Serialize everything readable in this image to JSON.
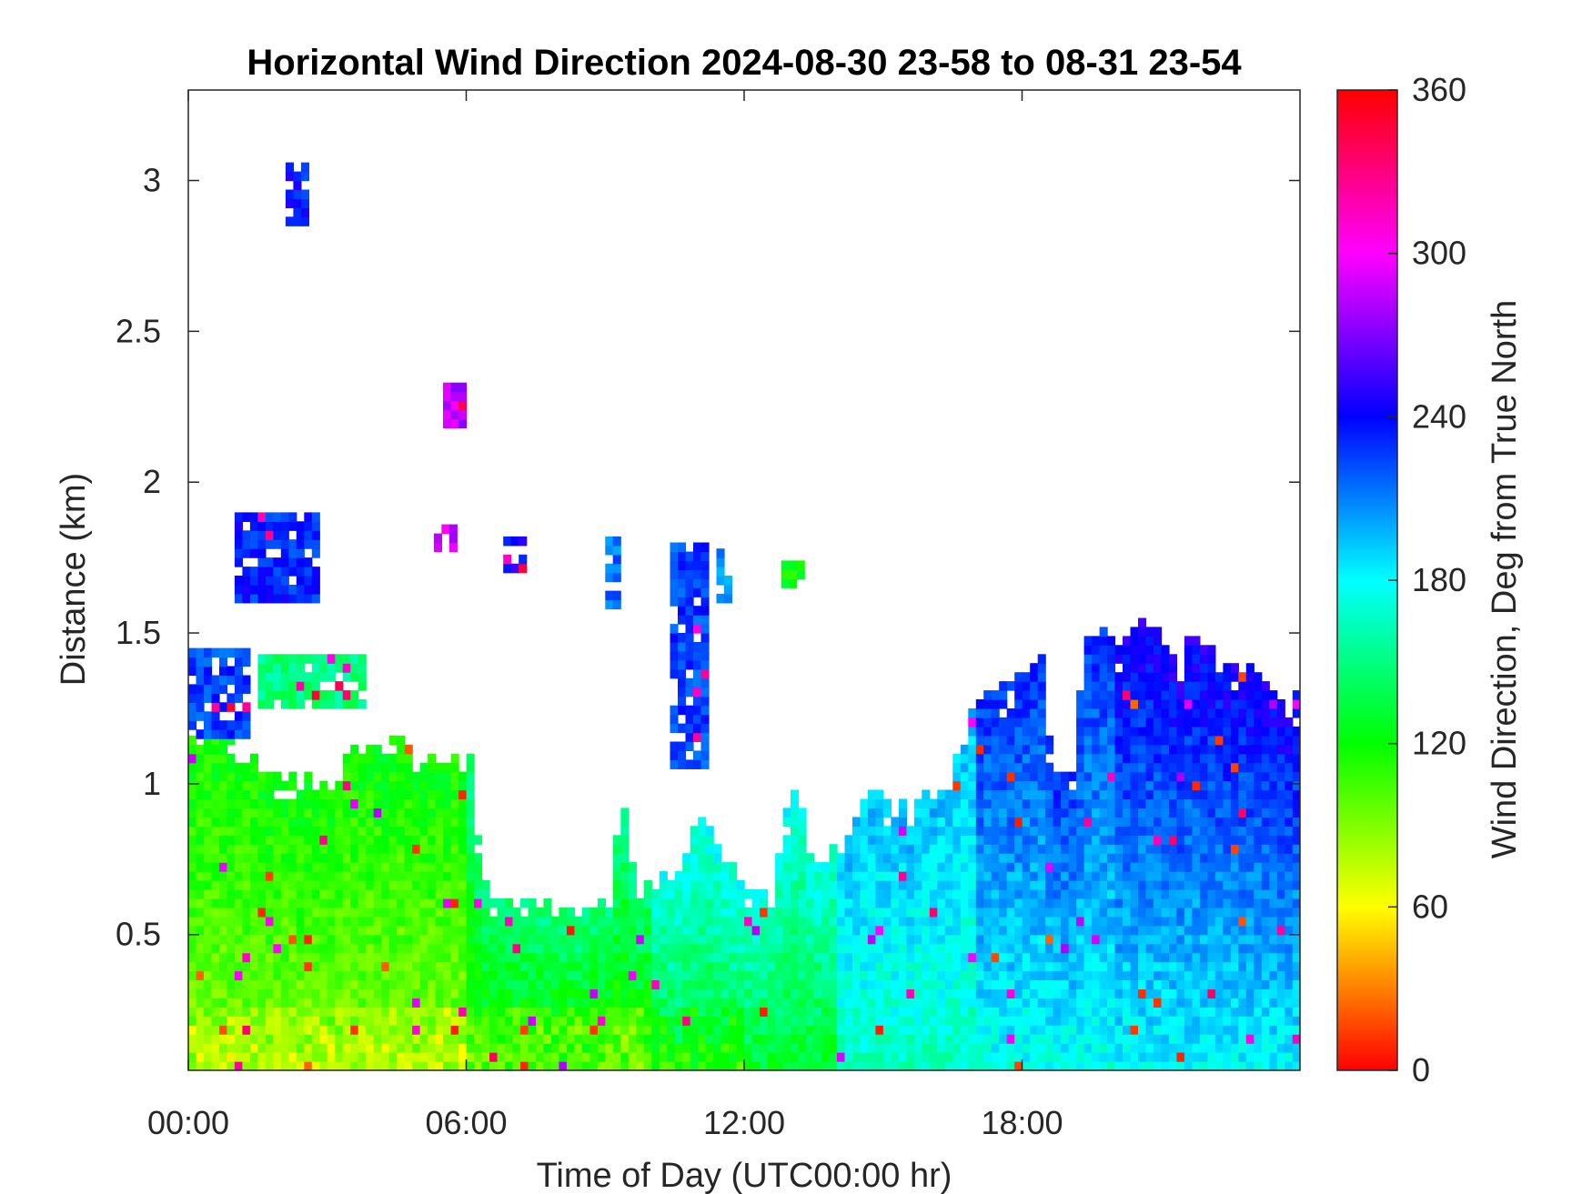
{
  "chart_data": {
    "type": "heatmap",
    "title": "Horizontal Wind Direction 2024-08-30 23-58 to 08-31 23-54",
    "xlabel": "Time of Day (UTC00:00 hr)",
    "ylabel": "Distance (km)",
    "xlim_hours": [
      0,
      24
    ],
    "ylim_km": [
      0.05,
      3.3
    ],
    "x_ticks": [
      {
        "value": 0,
        "label": "00:00"
      },
      {
        "value": 6,
        "label": "06:00"
      },
      {
        "value": 12,
        "label": "12:00"
      },
      {
        "value": 18,
        "label": "18:00"
      }
    ],
    "y_ticks": [
      {
        "value": 0.5,
        "label": "0.5"
      },
      {
        "value": 1,
        "label": "1"
      },
      {
        "value": 1.5,
        "label": "1.5"
      },
      {
        "value": 2,
        "label": "2"
      },
      {
        "value": 2.5,
        "label": "2.5"
      },
      {
        "value": 3,
        "label": "3"
      }
    ],
    "colorbar": {
      "label": "Wind Direction, Deg from True North",
      "range": [
        0,
        360
      ],
      "ticks": [
        "0",
        "60",
        "120",
        "180",
        "240",
        "300",
        "360"
      ],
      "colormap": "hsv",
      "colors": [
        "#ff0000",
        "#ffff00",
        "#00ff00",
        "#00ffff",
        "#0000ff",
        "#ff00ff",
        "#ff0000"
      ]
    },
    "time_step_hours": 0.1667,
    "range_step_km": 0.03,
    "data_top_km": [
      {
        "t": 0.0,
        "top": 1.13
      },
      {
        "t": 0.5,
        "top": 1.13
      },
      {
        "t": 1.2,
        "top": 1.08
      },
      {
        "t": 1.5,
        "top": 1.05
      },
      {
        "t": 2.5,
        "top": 1.0
      },
      {
        "t": 3.0,
        "top": 0.95
      },
      {
        "t": 3.5,
        "top": 1.08
      },
      {
        "t": 4.5,
        "top": 1.12
      },
      {
        "t": 5.0,
        "top": 1.05
      },
      {
        "t": 5.5,
        "top": 1.05
      },
      {
        "t": 6.0,
        "top": 1.05
      },
      {
        "t": 6.3,
        "top": 0.65
      },
      {
        "t": 7.0,
        "top": 0.6
      },
      {
        "t": 8.0,
        "top": 0.57
      },
      {
        "t": 8.5,
        "top": 0.55
      },
      {
        "t": 9.0,
        "top": 0.6
      },
      {
        "t": 9.3,
        "top": 0.95
      },
      {
        "t": 9.6,
        "top": 0.6
      },
      {
        "t": 10.0,
        "top": 0.65
      },
      {
        "t": 10.5,
        "top": 0.72
      },
      {
        "t": 11.0,
        "top": 0.9
      },
      {
        "t": 11.5,
        "top": 0.7
      },
      {
        "t": 12.0,
        "top": 0.65
      },
      {
        "t": 12.5,
        "top": 0.6
      },
      {
        "t": 13.0,
        "top": 0.98
      },
      {
        "t": 13.5,
        "top": 0.7
      },
      {
        "t": 14.0,
        "top": 0.8
      },
      {
        "t": 14.5,
        "top": 0.95
      },
      {
        "t": 15.0,
        "top": 0.92
      },
      {
        "t": 15.5,
        "top": 0.88
      },
      {
        "t": 16.0,
        "top": 0.95
      },
      {
        "t": 16.5,
        "top": 1.05
      },
      {
        "t": 16.8,
        "top": 1.2
      },
      {
        "t": 17.2,
        "top": 1.3
      },
      {
        "t": 17.8,
        "top": 1.35
      },
      {
        "t": 18.3,
        "top": 1.45
      },
      {
        "t": 18.6,
        "top": 1.0
      },
      {
        "t": 19.0,
        "top": 1.05
      },
      {
        "t": 19.3,
        "top": 1.5
      },
      {
        "t": 20.0,
        "top": 1.48
      },
      {
        "t": 20.5,
        "top": 1.5
      },
      {
        "t": 21.0,
        "top": 1.45
      },
      {
        "t": 21.3,
        "top": 1.3
      },
      {
        "t": 21.6,
        "top": 1.5
      },
      {
        "t": 22.2,
        "top": 1.4
      },
      {
        "t": 22.8,
        "top": 1.38
      },
      {
        "t": 23.3,
        "top": 1.35
      },
      {
        "t": 23.7,
        "top": 1.25
      },
      {
        "t": 24.0,
        "top": 1.33
      }
    ],
    "direction_zones": [
      {
        "t0": 0,
        "t1": 6,
        "low_deg": 90,
        "high_deg": 120
      },
      {
        "t0": 6,
        "t1": 10,
        "low_deg": 110,
        "high_deg": 150
      },
      {
        "t0": 10,
        "t1": 14,
        "low_deg": 130,
        "high_deg": 175
      },
      {
        "t0": 14,
        "t1": 17,
        "low_deg": 165,
        "high_deg": 195
      },
      {
        "t0": 17,
        "t1": 20,
        "low_deg": 175,
        "high_deg": 230
      },
      {
        "t0": 20,
        "t1": 24,
        "low_deg": 180,
        "high_deg": 245
      }
    ],
    "upper_patches": [
      {
        "t0": 2.1,
        "t1": 2.6,
        "z0": 2.85,
        "z1": 3.04,
        "deg": 235
      },
      {
        "t0": 1.0,
        "t1": 2.8,
        "z0": 1.6,
        "z1": 1.9,
        "deg": 232
      },
      {
        "t0": 0.0,
        "t1": 1.2,
        "z0": 1.15,
        "z1": 1.45,
        "deg": 225
      },
      {
        "t0": 1.5,
        "t1": 3.8,
        "z0": 1.25,
        "z1": 1.42,
        "deg": 150
      },
      {
        "t0": 5.5,
        "t1": 5.9,
        "z0": 2.18,
        "z1": 2.3,
        "deg": 285
      },
      {
        "t0": 5.3,
        "t1": 5.8,
        "z0": 1.77,
        "z1": 1.84,
        "deg": 290
      },
      {
        "t0": 6.8,
        "t1": 7.2,
        "z0": 1.7,
        "z1": 1.8,
        "deg": 245
      },
      {
        "t0": 9.0,
        "t1": 9.3,
        "z0": 1.58,
        "z1": 1.8,
        "deg": 215
      },
      {
        "t0": 10.4,
        "t1": 11.2,
        "z0": 1.05,
        "z1": 1.78,
        "deg": 225
      },
      {
        "t0": 11.4,
        "t1": 11.7,
        "z0": 1.6,
        "z1": 1.77,
        "deg": 210
      },
      {
        "t0": 12.8,
        "t1": 13.3,
        "z0": 1.65,
        "z1": 1.73,
        "deg": 120
      }
    ]
  }
}
